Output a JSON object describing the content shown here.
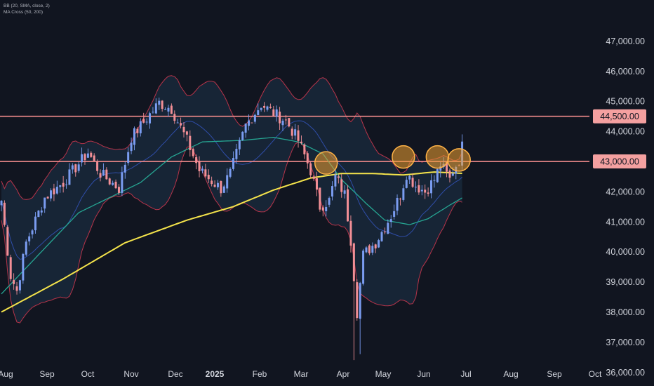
{
  "indicators": [
    "BB (20, SMA, close, 2)",
    "MA Cross (50, 200)"
  ],
  "colors": {
    "background": "#111520",
    "candle_up": "#7a9cf0",
    "candle_down": "#f28f96",
    "bb_basis": "#2f4da8",
    "bb_band": "#b8344a",
    "bb_fill": "#1d3349",
    "ma50": "#26a693",
    "ma200": "#f5e44b",
    "level_line": "#f28b8b",
    "level_tag_bg": "#f4a0a0",
    "circle_fill": "#f0a030",
    "circle_stroke": "#ffb347",
    "axis_text": "#d1d4dc"
  },
  "chart_data": {
    "type": "candlestick",
    "title": "",
    "ylim": [
      35600,
      47600
    ],
    "y_ticks": [
      36000,
      37000,
      38000,
      39000,
      40000,
      41000,
      42000,
      43000,
      44000,
      45000,
      46000,
      47000
    ],
    "y_tick_labels": [
      "36,000.00",
      "37,000.00",
      "38,000.00",
      "39,000.00",
      "40,000.00",
      "41,000.00",
      "42,000.00",
      "43,000.00",
      "44,000.00",
      "45,000.00",
      "46,000.00",
      "47,000.00"
    ],
    "x_tick_labels": [
      "Aug",
      "Sep",
      "Oct",
      "Nov",
      "Dec",
      "2025",
      "Feb",
      "Mar",
      "Apr",
      "May",
      "Jun",
      "Jul",
      "Aug",
      "Sep",
      "Oct"
    ],
    "x_bold_label": "2025",
    "horizontal_levels": [
      {
        "value": 44500,
        "label": "44,500.00"
      },
      {
        "value": 43000,
        "label": "43,000.00"
      }
    ],
    "price_path": [
      [
        0,
        41700
      ],
      [
        3,
        39200
      ],
      [
        5,
        38700
      ],
      [
        8,
        40300
      ],
      [
        14,
        41800
      ],
      [
        20,
        42300
      ],
      [
        28,
        43300
      ],
      [
        32,
        42600
      ],
      [
        38,
        42100
      ],
      [
        42,
        43800
      ],
      [
        46,
        44300
      ],
      [
        51,
        44950
      ],
      [
        55,
        44750
      ],
      [
        60,
        43700
      ],
      [
        64,
        42700
      ],
      [
        68,
        42350
      ],
      [
        71,
        42100
      ],
      [
        74,
        42600
      ],
      [
        79,
        44200
      ],
      [
        84,
        44900
      ],
      [
        88,
        44600
      ],
      [
        92,
        44350
      ],
      [
        96,
        43700
      ],
      [
        100,
        42700
      ],
      [
        103,
        41500
      ],
      [
        106,
        41700
      ],
      [
        108,
        42500
      ],
      [
        111,
        41900
      ],
      [
        113,
        40400
      ],
      [
        115,
        38000
      ],
      [
        117,
        39900
      ],
      [
        121,
        40300
      ],
      [
        126,
        41200
      ],
      [
        129,
        41900
      ],
      [
        131,
        42600
      ],
      [
        134,
        42200
      ],
      [
        137,
        42000
      ],
      [
        140,
        42400
      ],
      [
        142,
        42900
      ],
      [
        145,
        42400
      ],
      [
        146,
        42700
      ],
      [
        148,
        43050
      ],
      [
        149,
        43500
      ]
    ],
    "ma200_path": [
      [
        0,
        38000
      ],
      [
        20,
        39100
      ],
      [
        40,
        40300
      ],
      [
        60,
        41050
      ],
      [
        75,
        41500
      ],
      [
        88,
        42050
      ],
      [
        100,
        42450
      ],
      [
        110,
        42600
      ],
      [
        120,
        42600
      ],
      [
        130,
        42550
      ],
      [
        140,
        42650
      ],
      [
        150,
        42600
      ]
    ],
    "ma50_path": [
      [
        0,
        38600
      ],
      [
        12,
        39900
      ],
      [
        25,
        41300
      ],
      [
        45,
        42300
      ],
      [
        55,
        43150
      ],
      [
        65,
        43650
      ],
      [
        78,
        43700
      ],
      [
        88,
        43800
      ],
      [
        96,
        43650
      ],
      [
        104,
        43250
      ],
      [
        110,
        42400
      ],
      [
        118,
        41600
      ],
      [
        124,
        41050
      ],
      [
        132,
        40900
      ],
      [
        138,
        41100
      ],
      [
        145,
        41550
      ],
      [
        150,
        41850
      ]
    ],
    "highlight_circles": [
      {
        "x": 105,
        "y": 42950
      },
      {
        "x": 130,
        "y": 43150
      },
      {
        "x": 141,
        "y": 43150
      },
      {
        "x": 148,
        "y": 43050
      }
    ]
  }
}
